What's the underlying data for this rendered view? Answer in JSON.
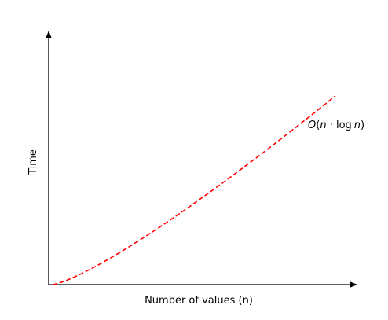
{
  "chart_data": {
    "type": "line",
    "title": "",
    "xlabel": "Number of values (n)",
    "ylabel": "Time",
    "xlim": [
      1,
      100
    ],
    "ylim": [
      0,
      650
    ],
    "grid": false,
    "ticks": false,
    "series": [
      {
        "function": "n*log(n)",
        "color": "#ff0000",
        "style": "dashed",
        "x": [
          1,
          10,
          20,
          30,
          40,
          50,
          60,
          70,
          80,
          90,
          100
        ],
        "y": [
          0,
          23.0,
          59.9,
          102.0,
          147.6,
          195.6,
          245.7,
          297.4,
          350.6,
          405.0,
          460.5
        ]
      }
    ],
    "annotations": [
      {
        "text": "O(n · log n)",
        "parts": {
          "o": "O",
          "open": "(",
          "n1": "n",
          "dot": " · ",
          "log": "log",
          "n2": "n",
          "close": ")"
        }
      }
    ]
  }
}
